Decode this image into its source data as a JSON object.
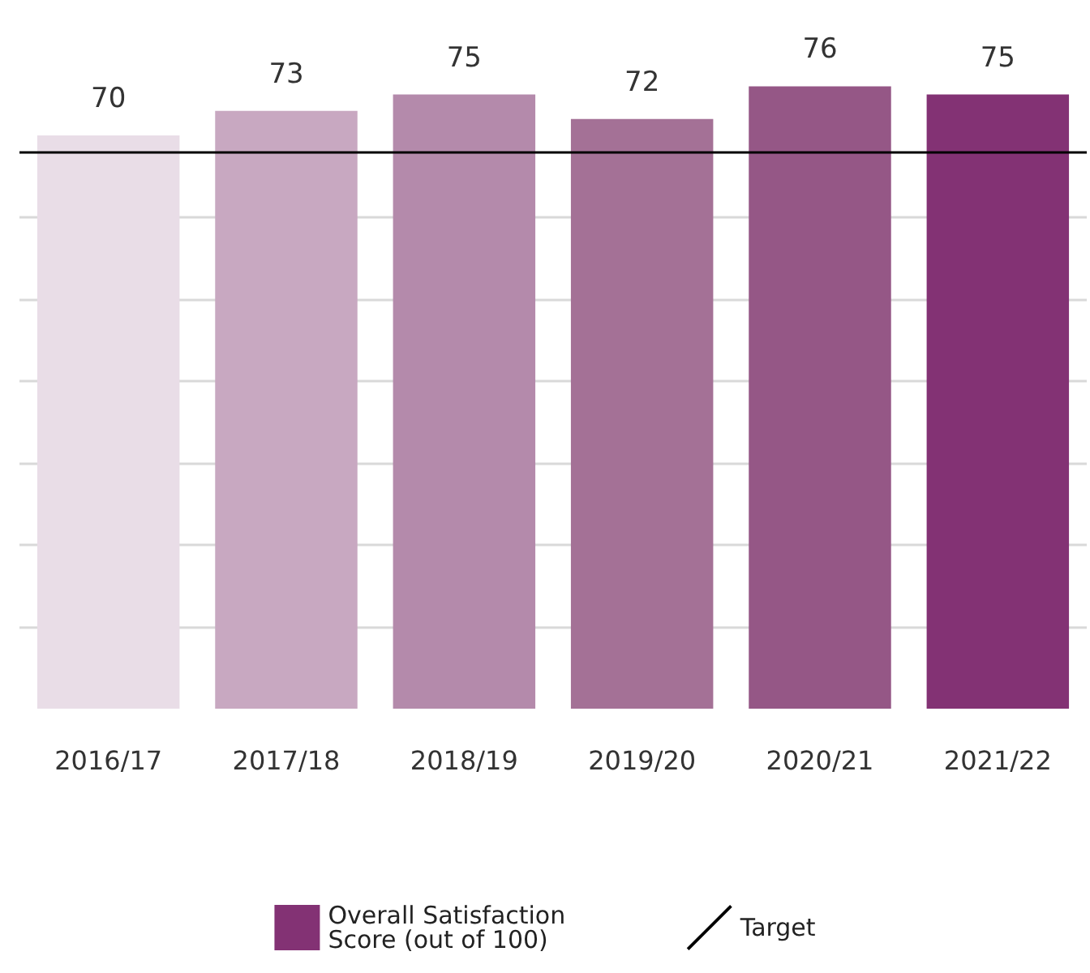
{
  "chart_data": {
    "type": "bar",
    "categories": [
      "2016/17",
      "2017/18",
      "2018/19",
      "2019/20",
      "2020/21",
      "2021/22"
    ],
    "series": [
      {
        "name": "Overall Satisfaction Score (out of 100)",
        "color": "#833274",
        "colors": [
          "#e9dde7",
          "#c8a8c1",
          "#b48aab",
          "#a47196",
          "#955786",
          "#833274"
        ],
        "values": [
          70,
          73,
          75,
          72,
          76,
          75
        ]
      }
    ],
    "yticks": [
      {
        "value": 10,
        "label": null
      },
      {
        "value": 20,
        "label": null
      },
      {
        "value": 30,
        "label": null
      },
      {
        "value": 40,
        "label": null
      },
      {
        "value": 50,
        "label": null
      },
      {
        "value": 60,
        "label": null
      }
    ],
    "tick_labels": "x",
    "grid": "y",
    "data_labels": true,
    "legend": "bottom",
    "ref_lines": [
      {
        "axis": "y",
        "value": 68,
        "label": "Target",
        "color": "#000000",
        "line_style": "solid"
      }
    ]
  }
}
